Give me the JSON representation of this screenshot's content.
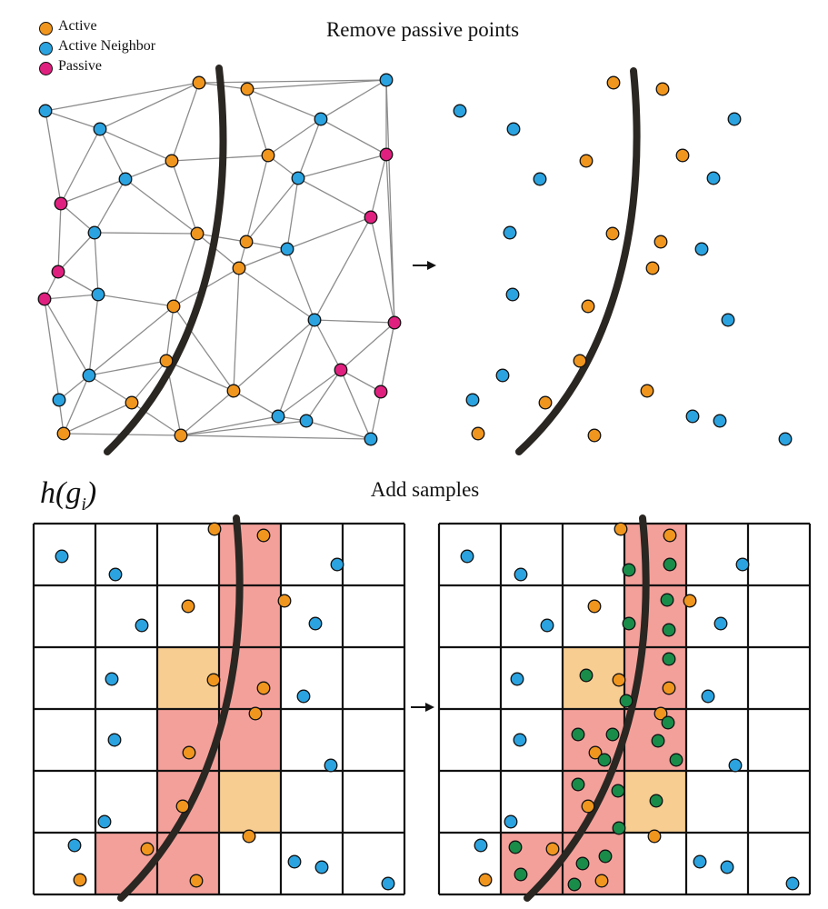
{
  "legend": {
    "items": [
      {
        "label": "Active",
        "color": "#f0961e"
      },
      {
        "label": "Active Neighbor",
        "color": "#2ba3e0"
      },
      {
        "label": "Passive",
        "color": "#e0207f"
      }
    ]
  },
  "titles": {
    "top": "Remove passive points",
    "bottom": "Add samples"
  },
  "h_label": {
    "func": "h(g",
    "sub": "i",
    "close": ")"
  },
  "colors": {
    "active": "#f0961e",
    "neighbor": "#2ba3e0",
    "passive": "#e0207f",
    "sample": "#1a8c4a",
    "cell_red": "#f4a09a",
    "cell_orange": "#f8cd92",
    "mesh": "#8c8c8c",
    "curve": "#2a2622"
  },
  "icons": [
    "arrow-right-icon",
    "arrow-right-icon"
  ]
}
